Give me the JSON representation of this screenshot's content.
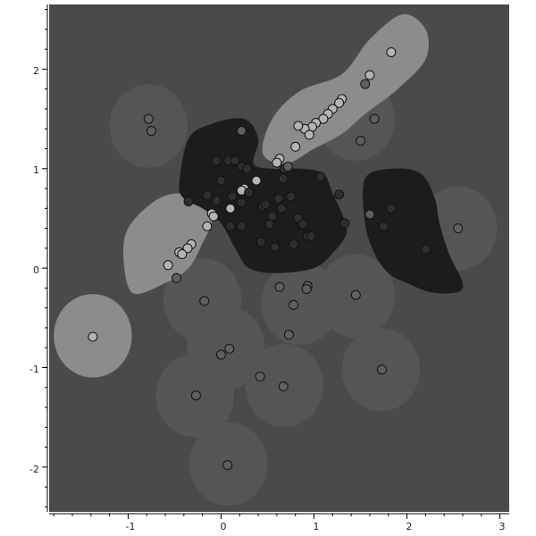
{
  "chart_data": {
    "type": "scatter",
    "title": "",
    "xlabel": "",
    "ylabel": "",
    "xlim": [
      -1.85,
      3.1
    ],
    "ylim": [
      -2.45,
      2.65
    ],
    "x_ticks": [
      -1,
      0,
      1,
      2,
      3
    ],
    "y_ticks": [
      -2,
      -1,
      0,
      1,
      2
    ],
    "x_tick_labels": [
      "-1",
      "0",
      "1",
      "2",
      "3"
    ],
    "y_tick_labels": [
      "-2",
      "-1",
      "0",
      "1",
      "2"
    ],
    "grid": false,
    "legend": "none",
    "colors": {
      "background": "#4a4a4a",
      "cluster_light": "#8c8c8c",
      "cluster_mid": "#555555",
      "cluster_dark": "#1c1c1c",
      "point_light": "#b4b4b4",
      "point_mid": "#5f5f5f",
      "point_dark": "#2e2e2e",
      "point_outline": "#111111",
      "axis": "#000000"
    },
    "regions": [
      {
        "class": "light",
        "shape": "blob",
        "points": [
          [
            0.45,
            1.15
          ],
          [
            0.55,
            1.5
          ],
          [
            0.85,
            1.78
          ],
          [
            1.3,
            1.95
          ],
          [
            1.6,
            2.3
          ],
          [
            1.95,
            2.55
          ],
          [
            2.2,
            2.4
          ],
          [
            2.2,
            2.1
          ],
          [
            1.9,
            1.8
          ],
          [
            1.55,
            1.55
          ],
          [
            1.3,
            1.35
          ],
          [
            1.0,
            1.2
          ],
          [
            0.7,
            1.05
          ]
        ]
      },
      {
        "class": "light",
        "shape": "blob",
        "points": [
          [
            -1.0,
            0.4
          ],
          [
            -0.75,
            0.65
          ],
          [
            -0.5,
            0.75
          ],
          [
            -0.25,
            0.7
          ],
          [
            -0.1,
            0.5
          ],
          [
            -0.2,
            0.25
          ],
          [
            -0.35,
            0.0
          ],
          [
            -0.6,
            -0.15
          ],
          [
            -0.95,
            -0.25
          ],
          [
            -1.05,
            0.1
          ]
        ]
      },
      {
        "class": "light",
        "shape": "circle",
        "cx": -1.38,
        "cy": -0.68,
        "r": 0.42
      },
      {
        "class": "dark",
        "shape": "blob",
        "points": [
          [
            -0.45,
            0.85
          ],
          [
            -0.35,
            1.3
          ],
          [
            -0.1,
            1.45
          ],
          [
            0.25,
            1.5
          ],
          [
            0.4,
            1.3
          ],
          [
            0.35,
            1.05
          ],
          [
            0.55,
            1.0
          ],
          [
            0.85,
            1.0
          ],
          [
            1.1,
            0.95
          ],
          [
            1.2,
            0.75
          ],
          [
            1.3,
            0.55
          ],
          [
            1.35,
            0.35
          ],
          [
            1.2,
            0.15
          ],
          [
            1.0,
            0.0
          ],
          [
            0.6,
            -0.05
          ],
          [
            0.3,
            0.0
          ],
          [
            0.15,
            0.2
          ],
          [
            0.0,
            0.45
          ],
          [
            -0.2,
            0.6
          ],
          [
            -0.4,
            0.7
          ]
        ]
      },
      {
        "class": "dark",
        "shape": "blob",
        "points": [
          [
            1.55,
            0.9
          ],
          [
            1.85,
            1.0
          ],
          [
            2.15,
            0.95
          ],
          [
            2.3,
            0.7
          ],
          [
            2.35,
            0.45
          ],
          [
            2.45,
            0.15
          ],
          [
            2.6,
            -0.2
          ],
          [
            2.3,
            -0.25
          ],
          [
            2.0,
            -0.15
          ],
          [
            1.8,
            -0.05
          ],
          [
            1.65,
            0.15
          ],
          [
            1.55,
            0.45
          ]
        ]
      }
    ],
    "influence": [
      {
        "x": -0.78,
        "y": 1.43,
        "r": 0.42
      },
      {
        "x": 1.45,
        "y": 1.5,
        "r": 0.42
      },
      {
        "x": 2.55,
        "y": 0.4,
        "r": 0.42
      },
      {
        "x": 1.45,
        "y": -0.28,
        "r": 0.42
      },
      {
        "x": 1.72,
        "y": -1.02,
        "r": 0.42
      },
      {
        "x": 0.68,
        "y": -1.18,
        "r": 0.42
      },
      {
        "x": -0.28,
        "y": -1.28,
        "r": 0.42
      },
      {
        "x": 0.08,
        "y": -1.97,
        "r": 0.42
      },
      {
        "x": 0.05,
        "y": -0.8,
        "r": 0.42
      },
      {
        "x": 0.85,
        "y": -0.35,
        "r": 0.42
      },
      {
        "x": -0.2,
        "y": -0.32,
        "r": 0.42
      }
    ],
    "points": [
      {
        "x": 1.83,
        "y": 2.17,
        "class": "light"
      },
      {
        "x": 1.6,
        "y": 1.94,
        "class": "light"
      },
      {
        "x": 1.55,
        "y": 1.85,
        "class": "mid"
      },
      {
        "x": 1.3,
        "y": 1.7,
        "class": "light"
      },
      {
        "x": 1.27,
        "y": 1.66,
        "class": "light"
      },
      {
        "x": 1.2,
        "y": 1.6,
        "class": "light"
      },
      {
        "x": 1.15,
        "y": 1.55,
        "class": "light"
      },
      {
        "x": 1.1,
        "y": 1.5,
        "class": "light"
      },
      {
        "x": 1.02,
        "y": 1.46,
        "class": "light"
      },
      {
        "x": 0.98,
        "y": 1.42,
        "class": "light"
      },
      {
        "x": 0.9,
        "y": 1.4,
        "class": "light"
      },
      {
        "x": 0.95,
        "y": 1.34,
        "class": "light"
      },
      {
        "x": 0.83,
        "y": 1.43,
        "class": "light"
      },
      {
        "x": 0.8,
        "y": 1.22,
        "class": "light"
      },
      {
        "x": 0.63,
        "y": 1.1,
        "class": "light"
      },
      {
        "x": 0.6,
        "y": 1.06,
        "class": "light"
      },
      {
        "x": 1.65,
        "y": 1.5,
        "class": "mid"
      },
      {
        "x": 1.5,
        "y": 1.28,
        "class": "mid"
      },
      {
        "x": -0.78,
        "y": 1.5,
        "class": "mid"
      },
      {
        "x": -0.75,
        "y": 1.38,
        "class": "mid"
      },
      {
        "x": 0.22,
        "y": 1.38,
        "class": "mid"
      },
      {
        "x": -0.05,
        "y": 1.08,
        "class": "dark"
      },
      {
        "x": 0.08,
        "y": 1.08,
        "class": "dark"
      },
      {
        "x": 0.15,
        "y": 1.08,
        "class": "dark"
      },
      {
        "x": 0.22,
        "y": 1.02,
        "class": "dark"
      },
      {
        "x": 0.28,
        "y": 1.0,
        "class": "dark"
      },
      {
        "x": 0.68,
        "y": 1.0,
        "class": "dark"
      },
      {
        "x": 0.72,
        "y": 1.02,
        "class": "mid"
      },
      {
        "x": 0.0,
        "y": 0.88,
        "class": "dark"
      },
      {
        "x": 0.38,
        "y": 0.88,
        "class": "light"
      },
      {
        "x": 0.67,
        "y": 0.9,
        "class": "dark"
      },
      {
        "x": 1.07,
        "y": 0.92,
        "class": "dark"
      },
      {
        "x": 0.25,
        "y": 0.8,
        "class": "light"
      },
      {
        "x": 0.22,
        "y": 0.78,
        "class": "light"
      },
      {
        "x": 0.3,
        "y": 0.76,
        "class": "dark"
      },
      {
        "x": -0.15,
        "y": 0.73,
        "class": "dark"
      },
      {
        "x": 0.12,
        "y": 0.72,
        "class": "dark"
      },
      {
        "x": 0.75,
        "y": 0.72,
        "class": "dark"
      },
      {
        "x": 0.62,
        "y": 0.7,
        "class": "dark"
      },
      {
        "x": 1.27,
        "y": 0.74,
        "class": "dark"
      },
      {
        "x": -0.35,
        "y": 0.67,
        "class": "dark"
      },
      {
        "x": -0.05,
        "y": 0.68,
        "class": "dark"
      },
      {
        "x": 0.22,
        "y": 0.66,
        "class": "dark"
      },
      {
        "x": 0.45,
        "y": 0.62,
        "class": "dark"
      },
      {
        "x": 0.48,
        "y": 0.64,
        "class": "dark"
      },
      {
        "x": 0.65,
        "y": 0.6,
        "class": "dark"
      },
      {
        "x": 0.1,
        "y": 0.6,
        "class": "light"
      },
      {
        "x": 1.83,
        "y": 0.6,
        "class": "dark"
      },
      {
        "x": -0.1,
        "y": 0.55,
        "class": "light"
      },
      {
        "x": -0.08,
        "y": 0.52,
        "class": "light"
      },
      {
        "x": 0.55,
        "y": 0.52,
        "class": "dark"
      },
      {
        "x": 0.83,
        "y": 0.5,
        "class": "dark"
      },
      {
        "x": 1.6,
        "y": 0.54,
        "class": "mid"
      },
      {
        "x": 0.88,
        "y": 0.44,
        "class": "dark"
      },
      {
        "x": 0.52,
        "y": 0.44,
        "class": "dark"
      },
      {
        "x": 1.33,
        "y": 0.45,
        "class": "dark"
      },
      {
        "x": -0.15,
        "y": 0.42,
        "class": "light"
      },
      {
        "x": 0.1,
        "y": 0.42,
        "class": "dark"
      },
      {
        "x": 0.22,
        "y": 0.42,
        "class": "dark"
      },
      {
        "x": 1.75,
        "y": 0.42,
        "class": "dark"
      },
      {
        "x": 2.55,
        "y": 0.4,
        "class": "mid"
      },
      {
        "x": 0.93,
        "y": 0.32,
        "class": "dark"
      },
      {
        "x": 0.97,
        "y": 0.32,
        "class": "dark"
      },
      {
        "x": 0.43,
        "y": 0.26,
        "class": "dark"
      },
      {
        "x": 0.78,
        "y": 0.24,
        "class": "dark"
      },
      {
        "x": 0.58,
        "y": 0.21,
        "class": "dark"
      },
      {
        "x": -0.32,
        "y": 0.24,
        "class": "light"
      },
      {
        "x": -0.36,
        "y": 0.2,
        "class": "light"
      },
      {
        "x": -0.45,
        "y": 0.16,
        "class": "light"
      },
      {
        "x": -0.42,
        "y": 0.14,
        "class": "light"
      },
      {
        "x": 2.2,
        "y": 0.19,
        "class": "dark"
      },
      {
        "x": -0.57,
        "y": 0.03,
        "class": "light"
      },
      {
        "x": -0.48,
        "y": -0.1,
        "class": "mid"
      },
      {
        "x": 0.63,
        "y": -0.19,
        "class": "mid"
      },
      {
        "x": 0.93,
        "y": -0.18,
        "class": "mid"
      },
      {
        "x": 0.92,
        "y": -0.21,
        "class": "mid"
      },
      {
        "x": 1.45,
        "y": -0.27,
        "class": "mid"
      },
      {
        "x": -0.18,
        "y": -0.33,
        "class": "mid"
      },
      {
        "x": 0.78,
        "y": -0.37,
        "class": "mid"
      },
      {
        "x": -1.38,
        "y": -0.69,
        "class": "light"
      },
      {
        "x": 0.73,
        "y": -0.67,
        "class": "mid"
      },
      {
        "x": 0.09,
        "y": -0.81,
        "class": "mid"
      },
      {
        "x": 0.0,
        "y": -0.87,
        "class": "mid"
      },
      {
        "x": 1.73,
        "y": -1.02,
        "class": "mid"
      },
      {
        "x": 0.42,
        "y": -1.09,
        "class": "mid"
      },
      {
        "x": 0.67,
        "y": -1.19,
        "class": "mid"
      },
      {
        "x": -0.27,
        "y": -1.28,
        "class": "mid"
      },
      {
        "x": 0.07,
        "y": -1.98,
        "class": "mid"
      }
    ]
  }
}
